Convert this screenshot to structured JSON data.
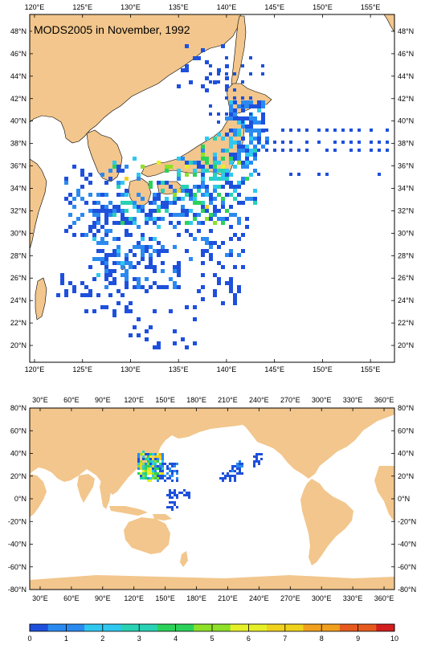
{
  "title": "MODS2005 in November, 1992",
  "regional_map": {
    "lon_labels": [
      "120°E",
      "125°E",
      "130°E",
      "135°E",
      "140°E",
      "145°E",
      "150°E",
      "155°E"
    ],
    "lat_labels": [
      "20°N",
      "22°N",
      "24°N",
      "26°N",
      "28°N",
      "30°N",
      "32°N",
      "34°N",
      "36°N",
      "38°N",
      "40°N",
      "42°N",
      "44°N",
      "46°N",
      "48°N"
    ],
    "lon_range": [
      119.5,
      157.5
    ],
    "lat_range": [
      18.5,
      49.5
    ]
  },
  "global_map": {
    "lon_labels": [
      "30°E",
      "60°E",
      "90°E",
      "120°E",
      "150°E",
      "180°E",
      "210°E",
      "240°E",
      "270°E",
      "300°E",
      "330°E",
      "360°E"
    ],
    "lat_labels": [
      "80°N",
      "60°N",
      "40°N",
      "20°N",
      "0°N",
      "-20°N",
      "-40°N",
      "-60°N",
      "-80°N"
    ],
    "lon_range": [
      20,
      370
    ],
    "lat_range": [
      -80,
      80
    ]
  },
  "colorbar": {
    "ticks": [
      "0",
      "1",
      "2",
      "3",
      "4",
      "5",
      "6",
      "7",
      "8",
      "9",
      "10"
    ],
    "colors": [
      "#1e50dc",
      "#2a8af0",
      "#2ec8f0",
      "#28d2b4",
      "#2ad25a",
      "#8ee028",
      "#e6f028",
      "#f0d21e",
      "#f0a01e",
      "#e65a1e",
      "#d21e1e"
    ]
  },
  "colors": {
    "land": "#f2c68c",
    "ocean": "#ffffff",
    "frame": "#000000"
  }
}
